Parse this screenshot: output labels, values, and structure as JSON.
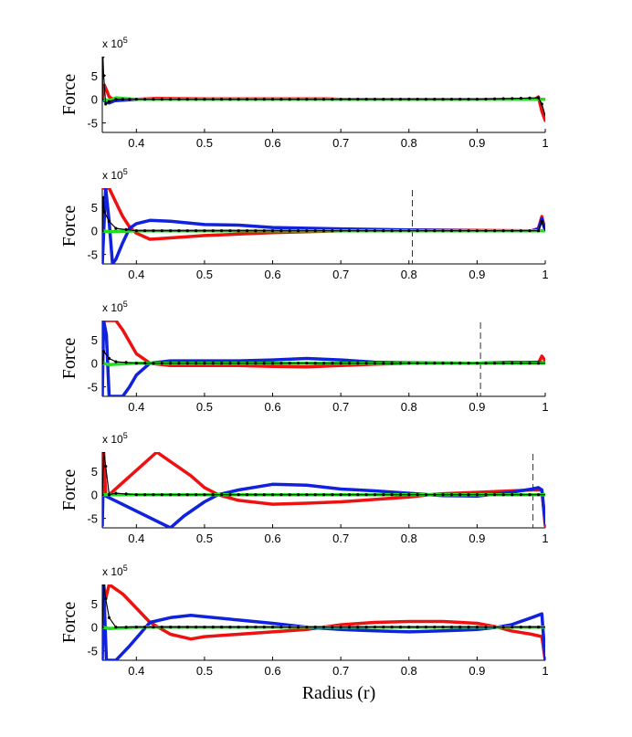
{
  "figure": {
    "xlabel": "Radius (r)"
  },
  "colors": {
    "red": "#ee1111",
    "blue": "#1122dd",
    "green": "#22dd22",
    "black": "#000000"
  },
  "chart_data": [
    {
      "type": "line",
      "ylabel": "Force",
      "multiplier": "x 10",
      "multiplier_exp": "5",
      "xlim": [
        0.35,
        1.0
      ],
      "ylim": [
        -70,
        90
      ],
      "xticks": [
        0.4,
        0.5,
        0.6,
        0.7,
        0.8,
        0.9,
        1
      ],
      "xtick_labels": [
        "0.4",
        "0.5",
        "0.6",
        "0.7",
        "0.8",
        "0.9",
        "1"
      ],
      "yticks": [
        -50,
        0,
        50
      ],
      "ytick_labels": [
        "-5",
        "0",
        "5"
      ],
      "dashed_x": null,
      "series": [
        {
          "color": "red",
          "x": [
            0.35,
            0.353,
            0.356,
            0.36,
            0.37,
            0.38,
            0.4,
            0.43,
            0.5,
            0.6,
            0.68,
            0.7,
            0.8,
            0.9,
            0.97,
            0.985,
            0.99,
            0.995,
            1.0
          ],
          "y": [
            0,
            30,
            20,
            5,
            -3,
            -2,
            0,
            2,
            1,
            1,
            1,
            0,
            0,
            0,
            0,
            0,
            5,
            -25,
            -45
          ]
        },
        {
          "color": "blue",
          "x": [
            0.35,
            0.355,
            0.36,
            0.37,
            0.4,
            0.5,
            0.7,
            0.9,
            0.99,
            1.0
          ],
          "y": [
            0,
            -5,
            -8,
            -2,
            0,
            0,
            0,
            0,
            0,
            0
          ]
        },
        {
          "color": "green",
          "x": [
            0.35,
            0.36,
            0.37,
            0.38,
            0.4,
            0.6,
            0.8,
            1.0
          ],
          "y": [
            0,
            -3,
            3,
            2,
            0,
            0,
            0,
            0
          ]
        },
        {
          "color": "black",
          "markers": true,
          "x": [
            0.35,
            0.351,
            0.352,
            0.355,
            0.36,
            0.37,
            0.38,
            0.4,
            0.5,
            0.6,
            0.7,
            0.8,
            0.9,
            0.99,
            0.995,
            1.0
          ],
          "y": [
            0,
            90,
            50,
            -10,
            -5,
            0,
            0,
            0,
            0,
            0,
            0,
            0,
            0,
            3,
            -10,
            -35
          ]
        }
      ]
    },
    {
      "type": "line",
      "ylabel": "Force",
      "multiplier": "x 10",
      "multiplier_exp": "5",
      "xlim": [
        0.35,
        1.0
      ],
      "ylim": [
        -70,
        90
      ],
      "xticks": [
        0.4,
        0.5,
        0.6,
        0.7,
        0.8,
        0.9,
        1
      ],
      "xtick_labels": [
        "0.4",
        "0.5",
        "0.6",
        "0.7",
        "0.8",
        "0.9",
        "1"
      ],
      "yticks": [
        -50,
        0,
        50
      ],
      "ytick_labels": [
        "-5",
        "0",
        "5"
      ],
      "dashed_x": 0.805,
      "series": [
        {
          "color": "red",
          "x": [
            0.35,
            0.36,
            0.37,
            0.38,
            0.39,
            0.4,
            0.42,
            0.45,
            0.5,
            0.55,
            0.6,
            0.65,
            0.7,
            0.8,
            0.9,
            0.98,
            0.99,
            0.995,
            1.0
          ],
          "y": [
            90,
            90,
            60,
            30,
            8,
            -5,
            -18,
            -15,
            -10,
            -7,
            -4,
            -2,
            0,
            2,
            1,
            0,
            5,
            30,
            0
          ]
        },
        {
          "color": "blue",
          "x": [
            0.35,
            0.355,
            0.36,
            0.365,
            0.37,
            0.38,
            0.39,
            0.4,
            0.42,
            0.45,
            0.5,
            0.55,
            0.6,
            0.7,
            0.8,
            0.9,
            0.98,
            0.99,
            0.995,
            1.0
          ],
          "y": [
            -70,
            90,
            20,
            -70,
            -60,
            -25,
            5,
            15,
            22,
            20,
            13,
            12,
            7,
            4,
            2,
            0,
            0,
            3,
            25,
            0
          ]
        },
        {
          "color": "green",
          "x": [
            0.35,
            0.36,
            0.4,
            0.6,
            0.8,
            1.0
          ],
          "y": [
            0,
            -2,
            0,
            0,
            0,
            0
          ]
        },
        {
          "color": "black",
          "markers": true,
          "x": [
            0.35,
            0.351,
            0.353,
            0.36,
            0.37,
            0.4,
            0.5,
            0.6,
            0.7,
            0.8,
            0.9,
            0.99,
            0.995,
            1.0
          ],
          "y": [
            0,
            70,
            40,
            20,
            5,
            0,
            0,
            0,
            0,
            0,
            0,
            0,
            20,
            0
          ]
        }
      ]
    },
    {
      "type": "line",
      "ylabel": "Force",
      "multiplier": "x 10",
      "multiplier_exp": "5",
      "xlim": [
        0.35,
        1.0
      ],
      "ylim": [
        -70,
        90
      ],
      "xticks": [
        0.4,
        0.5,
        0.6,
        0.7,
        0.8,
        0.9,
        1
      ],
      "xtick_labels": [
        "0.4",
        "0.5",
        "0.6",
        "0.7",
        "0.8",
        "0.9",
        "1"
      ],
      "yticks": [
        -50,
        0,
        50
      ],
      "ytick_labels": [
        "-5",
        "0",
        "5"
      ],
      "dashed_x": 0.905,
      "series": [
        {
          "color": "red",
          "x": [
            0.35,
            0.37,
            0.38,
            0.39,
            0.4,
            0.42,
            0.45,
            0.5,
            0.55,
            0.6,
            0.65,
            0.7,
            0.75,
            0.8,
            0.9,
            0.95,
            0.99,
            0.995,
            1.0
          ],
          "y": [
            90,
            90,
            70,
            45,
            20,
            0,
            -5,
            -5,
            -5,
            -7,
            -8,
            -5,
            -2,
            0,
            0,
            2,
            0,
            15,
            5
          ]
        },
        {
          "color": "blue",
          "x": [
            0.35,
            0.352,
            0.356,
            0.36,
            0.37,
            0.38,
            0.39,
            0.4,
            0.42,
            0.45,
            0.5,
            0.55,
            0.6,
            0.65,
            0.7,
            0.75,
            0.8,
            0.9,
            0.99,
            1.0
          ],
          "y": [
            -70,
            90,
            60,
            -70,
            -70,
            -70,
            -50,
            -25,
            0,
            5,
            5,
            5,
            7,
            10,
            7,
            2,
            1,
            0,
            2,
            0
          ]
        },
        {
          "color": "green",
          "x": [
            0.35,
            0.36,
            0.4,
            0.6,
            0.8,
            1.0
          ],
          "y": [
            0,
            -3,
            0,
            0,
            0,
            0
          ]
        },
        {
          "color": "black",
          "markers": true,
          "x": [
            0.35,
            0.352,
            0.36,
            0.37,
            0.4,
            0.5,
            0.6,
            0.7,
            0.8,
            0.9,
            0.99,
            1.0
          ],
          "y": [
            0,
            25,
            10,
            3,
            0,
            0,
            0,
            0,
            0,
            0,
            0,
            0
          ]
        }
      ]
    },
    {
      "type": "line",
      "ylabel": "Force",
      "multiplier": "x 10",
      "multiplier_exp": "5",
      "xlim": [
        0.35,
        1.0
      ],
      "ylim": [
        -70,
        90
      ],
      "xticks": [
        0.4,
        0.5,
        0.6,
        0.7,
        0.8,
        0.9,
        1
      ],
      "xtick_labels": [
        "0.4",
        "0.5",
        "0.6",
        "0.7",
        "0.8",
        "0.9",
        "1"
      ],
      "yticks": [
        -50,
        0,
        50
      ],
      "ytick_labels": [
        "-5",
        "0",
        "5"
      ],
      "dashed_x": 0.982,
      "series": [
        {
          "color": "red",
          "x": [
            0.35,
            0.352,
            0.355,
            0.36,
            0.43,
            0.45,
            0.48,
            0.5,
            0.52,
            0.55,
            0.6,
            0.65,
            0.7,
            0.75,
            0.8,
            0.83,
            0.85,
            0.9,
            0.95,
            0.98,
            0.995,
            1.0
          ],
          "y": [
            0,
            90,
            0,
            0,
            90,
            70,
            40,
            15,
            0,
            -12,
            -20,
            -18,
            -15,
            -10,
            -5,
            0,
            2,
            5,
            8,
            10,
            10,
            -65
          ]
        },
        {
          "color": "blue",
          "x": [
            0.35,
            0.351,
            0.45,
            0.47,
            0.5,
            0.52,
            0.55,
            0.6,
            0.65,
            0.7,
            0.75,
            0.8,
            0.83,
            0.85,
            0.9,
            0.95,
            0.98,
            0.99,
            0.995,
            1.0
          ],
          "y": [
            -65,
            0,
            -70,
            -45,
            -15,
            0,
            10,
            22,
            20,
            12,
            8,
            3,
            0,
            -2,
            -3,
            5,
            12,
            15,
            10,
            -60
          ]
        },
        {
          "color": "green",
          "x": [
            0.35,
            0.4,
            0.6,
            0.8,
            1.0
          ],
          "y": [
            0,
            0,
            0,
            0,
            0
          ]
        },
        {
          "color": "black",
          "markers": true,
          "x": [
            0.35,
            0.352,
            0.355,
            0.36,
            0.37,
            0.4,
            0.5,
            0.6,
            0.7,
            0.8,
            0.9,
            0.99,
            1.0
          ],
          "y": [
            0,
            90,
            60,
            0,
            3,
            0,
            0,
            0,
            0,
            0,
            0,
            0,
            0
          ]
        }
      ]
    },
    {
      "type": "line",
      "ylabel": "Force",
      "multiplier": "x 10",
      "multiplier_exp": "5",
      "xlim": [
        0.35,
        1.0
      ],
      "ylim": [
        -70,
        90
      ],
      "xticks": [
        0.4,
        0.5,
        0.6,
        0.7,
        0.8,
        0.9,
        1
      ],
      "xtick_labels": [
        "0.4",
        "0.5",
        "0.6",
        "0.7",
        "0.8",
        "0.9",
        "1"
      ],
      "yticks": [
        -50,
        0,
        50
      ],
      "ytick_labels": [
        "-5",
        "0",
        "5"
      ],
      "dashed_x": null,
      "series": [
        {
          "color": "red",
          "x": [
            0.35,
            0.352,
            0.355,
            0.36,
            0.38,
            0.4,
            0.42,
            0.45,
            0.48,
            0.5,
            0.55,
            0.6,
            0.65,
            0.7,
            0.75,
            0.8,
            0.85,
            0.9,
            0.93,
            0.95,
            0.98,
            0.995,
            1.0
          ],
          "y": [
            0,
            90,
            60,
            90,
            70,
            40,
            10,
            -15,
            -25,
            -20,
            -15,
            -10,
            -5,
            5,
            10,
            12,
            12,
            8,
            0,
            -8,
            -15,
            -20,
            -70
          ]
        },
        {
          "color": "blue",
          "x": [
            0.35,
            0.352,
            0.356,
            0.36,
            0.37,
            0.39,
            0.42,
            0.45,
            0.48,
            0.5,
            0.55,
            0.6,
            0.65,
            0.7,
            0.75,
            0.8,
            0.85,
            0.9,
            0.93,
            0.95,
            0.98,
            0.995,
            1.0
          ],
          "y": [
            -70,
            90,
            -70,
            -70,
            -70,
            -40,
            10,
            20,
            25,
            22,
            15,
            8,
            0,
            -5,
            -8,
            -10,
            -8,
            -5,
            0,
            5,
            20,
            28,
            -70
          ]
        },
        {
          "color": "green",
          "x": [
            0.35,
            0.36,
            0.4,
            0.6,
            0.8,
            1.0
          ],
          "y": [
            0,
            -3,
            0,
            0,
            0,
            0
          ]
        },
        {
          "color": "black",
          "markers": true,
          "x": [
            0.35,
            0.352,
            0.355,
            0.36,
            0.37,
            0.4,
            0.5,
            0.6,
            0.7,
            0.8,
            0.9,
            0.99,
            1.0
          ],
          "y": [
            0,
            90,
            60,
            20,
            0,
            0,
            0,
            0,
            0,
            0,
            0,
            0,
            0
          ]
        }
      ]
    }
  ]
}
